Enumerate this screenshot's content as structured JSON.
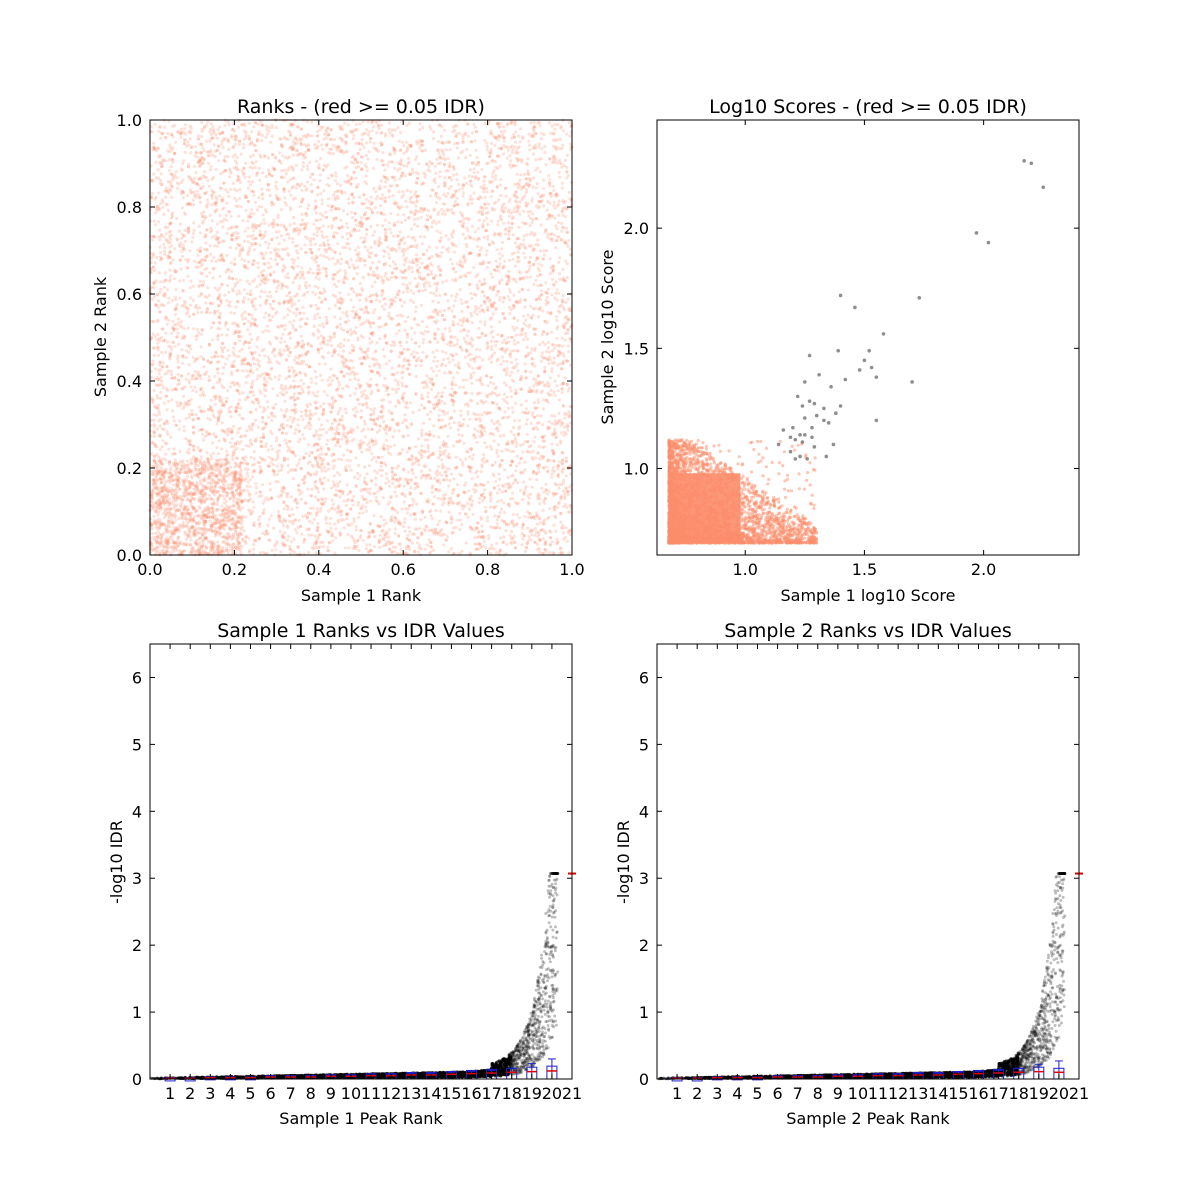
{
  "chart_data": [
    {
      "type": "scatter",
      "title": "Ranks - (red >= 0.05 IDR)",
      "xlabel": "Sample 1 Rank",
      "ylabel": "Sample 2 Rank",
      "xlim": [
        0,
        1
      ],
      "ylim": [
        0,
        1
      ],
      "xticks": [
        "0.0",
        "0.2",
        "0.4",
        "0.6",
        "0.8",
        "1.0"
      ],
      "yticks": [
        "0.0",
        "0.2",
        "0.4",
        "0.6",
        "0.8",
        "1.0"
      ],
      "point_color": "#fc8d6b",
      "point_opacity": 0.25,
      "approx_points": 9000,
      "note_points": "uniformly scattered ranks across the full [0,1] square, denser cluster at x<0.22,y<0.22"
    },
    {
      "type": "scatter",
      "title": "Log10 Scores - (red >= 0.05 IDR)",
      "xlabel": "Sample 1 log10 Score",
      "ylabel": "Sample 2 log10 Score",
      "xlim": [
        0.63,
        2.4
      ],
      "ylim": [
        0.64,
        2.45
      ],
      "xticks": [
        "1.0",
        "1.5",
        "2.0"
      ],
      "yticks": [
        "1.0",
        "1.5",
        "2.0"
      ],
      "red_region": {
        "x": [
          0.68,
          1.3
        ],
        "y": [
          0.69,
          1.12
        ],
        "color": "#fc8d6b"
      },
      "black_points": [
        {
          "x": 2.17,
          "y": 2.28
        },
        {
          "x": 2.2,
          "y": 2.27
        },
        {
          "x": 2.25,
          "y": 2.17
        },
        {
          "x": 1.97,
          "y": 1.98
        },
        {
          "x": 2.02,
          "y": 1.94
        },
        {
          "x": 1.73,
          "y": 1.71
        },
        {
          "x": 1.4,
          "y": 1.72
        },
        {
          "x": 1.46,
          "y": 1.67
        },
        {
          "x": 1.58,
          "y": 1.56
        },
        {
          "x": 1.52,
          "y": 1.49
        },
        {
          "x": 1.5,
          "y": 1.45
        },
        {
          "x": 1.53,
          "y": 1.42
        },
        {
          "x": 1.39,
          "y": 1.49
        },
        {
          "x": 1.48,
          "y": 1.41
        },
        {
          "x": 1.55,
          "y": 1.38
        },
        {
          "x": 1.7,
          "y": 1.36
        },
        {
          "x": 1.27,
          "y": 1.47
        },
        {
          "x": 1.31,
          "y": 1.39
        },
        {
          "x": 1.25,
          "y": 1.36
        },
        {
          "x": 1.36,
          "y": 1.34
        },
        {
          "x": 1.42,
          "y": 1.37
        },
        {
          "x": 1.22,
          "y": 1.3
        },
        {
          "x": 1.27,
          "y": 1.28
        },
        {
          "x": 1.29,
          "y": 1.27
        },
        {
          "x": 1.24,
          "y": 1.26
        },
        {
          "x": 1.33,
          "y": 1.25
        },
        {
          "x": 1.4,
          "y": 1.26
        },
        {
          "x": 1.38,
          "y": 1.23
        },
        {
          "x": 1.3,
          "y": 1.22
        },
        {
          "x": 1.25,
          "y": 1.21
        },
        {
          "x": 1.33,
          "y": 1.2
        },
        {
          "x": 1.35,
          "y": 1.19
        },
        {
          "x": 1.55,
          "y": 1.2
        },
        {
          "x": 1.28,
          "y": 1.17
        },
        {
          "x": 1.2,
          "y": 1.17
        },
        {
          "x": 1.16,
          "y": 1.16
        },
        {
          "x": 1.23,
          "y": 1.14
        },
        {
          "x": 1.25,
          "y": 1.14
        },
        {
          "x": 1.19,
          "y": 1.13
        },
        {
          "x": 1.21,
          "y": 1.12
        },
        {
          "x": 1.28,
          "y": 1.13
        },
        {
          "x": 1.24,
          "y": 1.11
        },
        {
          "x": 1.37,
          "y": 1.1
        },
        {
          "x": 1.14,
          "y": 1.1
        },
        {
          "x": 1.29,
          "y": 1.09
        },
        {
          "x": 1.19,
          "y": 1.07
        },
        {
          "x": 1.23,
          "y": 1.05
        },
        {
          "x": 1.26,
          "y": 1.04
        },
        {
          "x": 1.34,
          "y": 1.05
        },
        {
          "x": 1.21,
          "y": 1.04
        }
      ]
    },
    {
      "type": "scatter",
      "title": "Sample 1 Ranks vs IDR Values",
      "xlabel": "Sample 1 Peak Rank",
      "ylabel": "-log10 IDR",
      "xlim": [
        0,
        21
      ],
      "ylim": [
        0,
        6.5
      ],
      "xticks": [
        "1",
        "2",
        "3",
        "4",
        "5",
        "6",
        "7",
        "8",
        "9",
        "10",
        "11",
        "12",
        "13",
        "14",
        "15",
        "16",
        "17",
        "18",
        "19",
        "20",
        "21"
      ],
      "yticks": [
        "0",
        "1",
        "2",
        "3",
        "4",
        "5",
        "6"
      ],
      "max_value": 3.07,
      "box_medians": [
        0.01,
        0.01,
        0.02,
        0.02,
        0.02,
        0.03,
        0.03,
        0.03,
        0.04,
        0.04,
        0.05,
        0.05,
        0.06,
        0.06,
        0.07,
        0.08,
        0.09,
        0.1,
        0.11,
        0.12
      ],
      "box_whisker_top": [
        0.02,
        0.02,
        0.03,
        0.03,
        0.03,
        0.04,
        0.04,
        0.05,
        0.05,
        0.06,
        0.06,
        0.07,
        0.08,
        0.08,
        0.1,
        0.11,
        0.13,
        0.16,
        0.23,
        0.3
      ]
    },
    {
      "type": "scatter",
      "title": "Sample 2 Ranks vs IDR Values",
      "xlabel": "Sample 2 Peak Rank",
      "ylabel": "-log10 IDR",
      "xlim": [
        0,
        21
      ],
      "ylim": [
        0,
        6.5
      ],
      "xticks": [
        "1",
        "2",
        "3",
        "4",
        "5",
        "6",
        "7",
        "8",
        "9",
        "10",
        "11",
        "12",
        "13",
        "14",
        "15",
        "16",
        "17",
        "18",
        "19",
        "20",
        "21"
      ],
      "yticks": [
        "0",
        "1",
        "2",
        "3",
        "4",
        "5",
        "6"
      ],
      "max_value": 3.07,
      "box_medians": [
        0.01,
        0.01,
        0.02,
        0.02,
        0.02,
        0.03,
        0.03,
        0.03,
        0.04,
        0.04,
        0.05,
        0.05,
        0.06,
        0.06,
        0.07,
        0.08,
        0.09,
        0.1,
        0.11,
        0.1
      ],
      "box_whisker_top": [
        0.02,
        0.02,
        0.03,
        0.03,
        0.03,
        0.04,
        0.04,
        0.05,
        0.05,
        0.06,
        0.06,
        0.07,
        0.08,
        0.08,
        0.1,
        0.11,
        0.13,
        0.16,
        0.22,
        0.27
      ]
    }
  ]
}
